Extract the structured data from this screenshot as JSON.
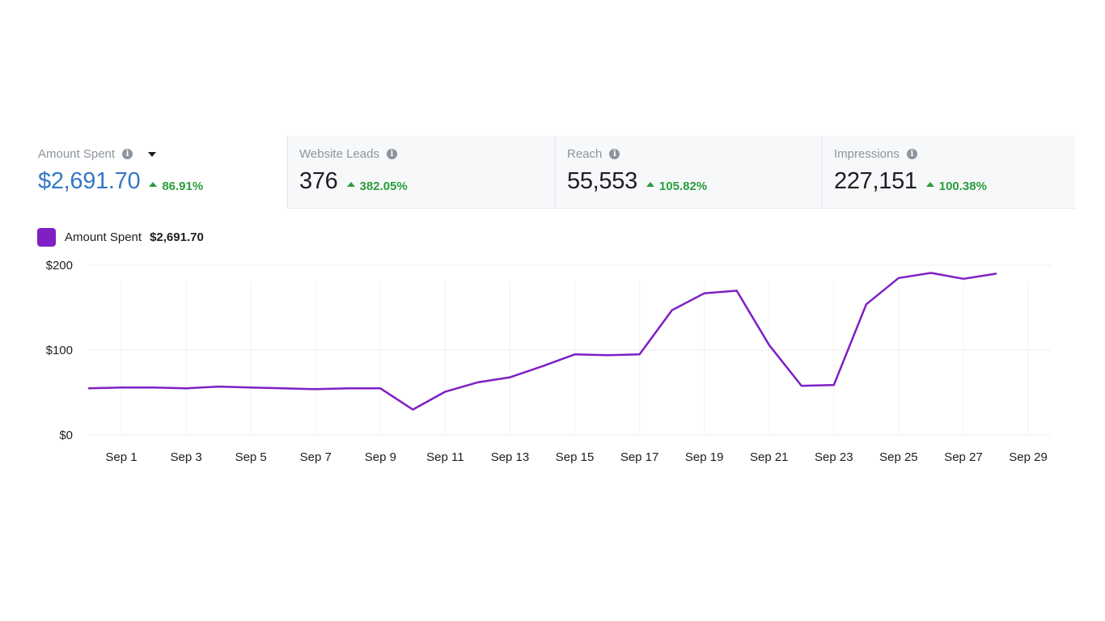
{
  "metrics": [
    {
      "label": "Amount Spent",
      "value": "$2,691.70",
      "change": "86.91%",
      "icon": "info-icon",
      "active": true
    },
    {
      "label": "Website Leads",
      "value": "376",
      "change": "382.05%",
      "icon": "info-icon"
    },
    {
      "label": "Reach",
      "value": "55,553",
      "change": "105.82%",
      "icon": "info-icon"
    },
    {
      "label": "Impressions",
      "value": "227,151",
      "change": "100.38%",
      "icon": "info-icon"
    }
  ],
  "colors": {
    "series": "#7f1fc5",
    "positive": "#2a9d3c",
    "active_value": "#3578c7"
  },
  "chart_data": {
    "type": "line",
    "legend": {
      "name": "Amount Spent",
      "value": "$2,691.70",
      "placement": "top-left"
    },
    "x": [
      "Aug 31",
      "Sep 1",
      "Sep 2",
      "Sep 3",
      "Sep 4",
      "Sep 5",
      "Sep 6",
      "Sep 7",
      "Sep 8",
      "Sep 9",
      "Sep 10",
      "Sep 11",
      "Sep 12",
      "Sep 13",
      "Sep 14",
      "Sep 15",
      "Sep 16",
      "Sep 17",
      "Sep 18",
      "Sep 19",
      "Sep 20",
      "Sep 21",
      "Sep 22",
      "Sep 23",
      "Sep 24",
      "Sep 25",
      "Sep 26",
      "Sep 27",
      "Sep 28"
    ],
    "series": [
      {
        "name": "Amount Spent",
        "values": [
          55,
          56,
          56,
          55,
          57,
          56,
          55,
          54,
          55,
          55,
          30,
          51,
          62,
          68,
          81,
          95,
          94,
          95,
          147,
          167,
          170,
          106,
          58,
          59,
          154,
          185,
          191,
          184,
          190
        ]
      }
    ],
    "x_tick_labels": [
      "Sep 1",
      "Sep 3",
      "Sep 5",
      "Sep 7",
      "Sep 9",
      "Sep 11",
      "Sep 13",
      "Sep 15",
      "Sep 17",
      "Sep 19",
      "Sep 21",
      "Sep 23",
      "Sep 25",
      "Sep 27",
      "Sep 29"
    ],
    "y_ticks": [
      0,
      100,
      200
    ],
    "y_tick_labels": [
      "$0",
      "$100",
      "$200"
    ],
    "ylim": [
      0,
      200
    ],
    "grid": true
  }
}
